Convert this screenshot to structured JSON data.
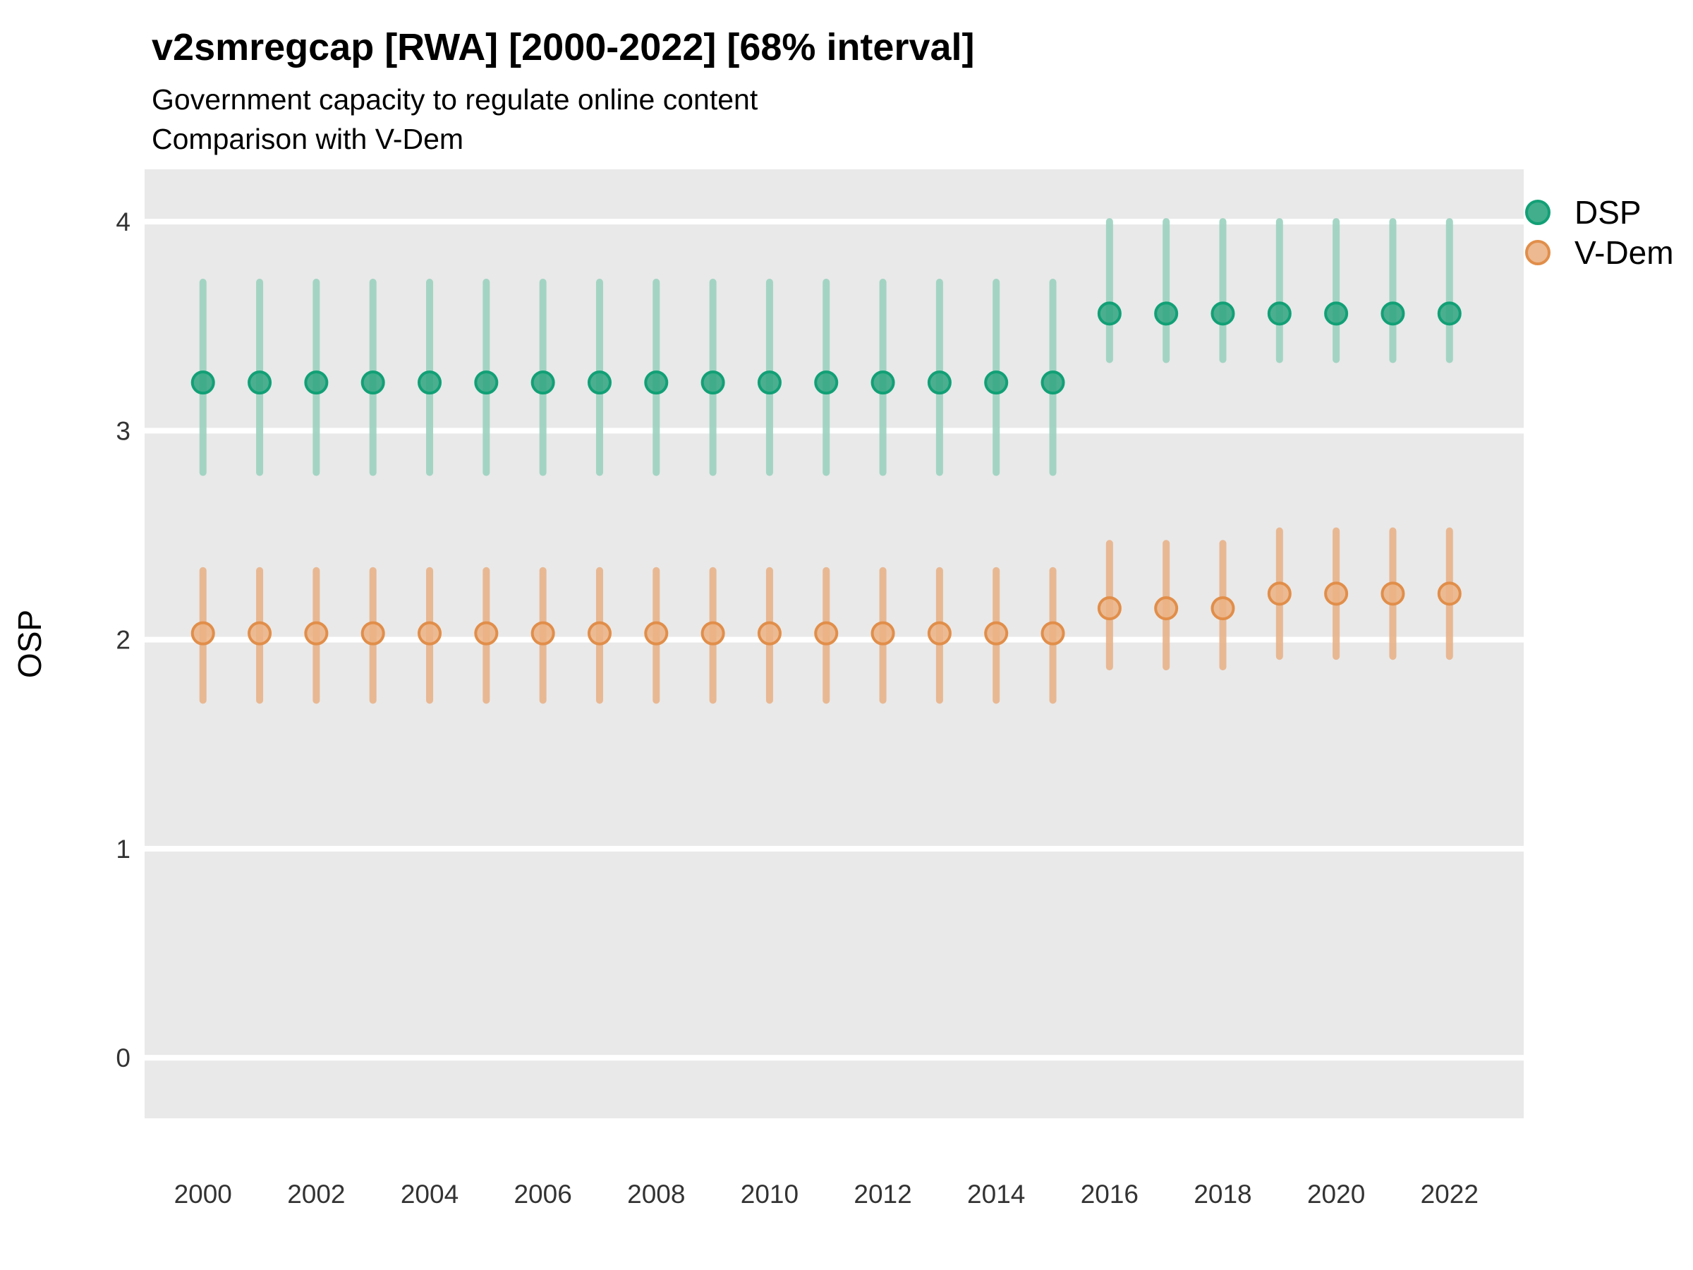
{
  "header": {
    "title": "v2smregcap [RWA] [2000-2022] [68% interval]",
    "subtitle1": "Government capacity to regulate online content",
    "subtitle2": "Comparison with V-Dem"
  },
  "axes": {
    "ylabel": "OSP",
    "y_ticks": [
      0,
      1,
      2,
      3,
      4
    ],
    "x_ticks": [
      2000,
      2002,
      2004,
      2006,
      2008,
      2010,
      2012,
      2014,
      2016,
      2018,
      2020,
      2022
    ]
  },
  "legend": {
    "items": [
      {
        "label": "DSP"
      },
      {
        "label": "V-Dem"
      }
    ]
  },
  "colors": {
    "panel_bg": "#e9e9e9",
    "gridline": "#ffffff",
    "tick_text": "#333333",
    "dsp_bar": "#9bd2bf",
    "dsp_fill": "#2fa57f",
    "dsp_stroke": "#12a076",
    "vdem_bar": "#e8b28a",
    "vdem_fill": "#ebb184",
    "vdem_stroke": "#e18e4a"
  },
  "chart_data": {
    "type": "pointrange",
    "title": "v2smregcap [RWA] [2000-2022] [68% interval]",
    "xlabel": "",
    "ylabel": "OSP",
    "x": [
      2000,
      2001,
      2002,
      2003,
      2004,
      2005,
      2006,
      2007,
      2008,
      2009,
      2010,
      2011,
      2012,
      2013,
      2014,
      2015,
      2016,
      2017,
      2018,
      2019,
      2020,
      2021,
      2022
    ],
    "xlim": [
      1998.97,
      2023.31
    ],
    "ylim": [
      -0.29,
      4.25
    ],
    "grid": "major-horizontal-only",
    "legend_position": "right-top",
    "series": [
      {
        "name": "DSP",
        "est": [
          3.23,
          3.23,
          3.23,
          3.23,
          3.23,
          3.23,
          3.23,
          3.23,
          3.23,
          3.23,
          3.23,
          3.23,
          3.23,
          3.23,
          3.23,
          3.23,
          3.56,
          3.56,
          3.56,
          3.56,
          3.56,
          3.56,
          3.56
        ],
        "lo": [
          2.8,
          2.8,
          2.8,
          2.8,
          2.8,
          2.8,
          2.8,
          2.8,
          2.8,
          2.8,
          2.8,
          2.8,
          2.8,
          2.8,
          2.8,
          2.8,
          3.34,
          3.34,
          3.34,
          3.34,
          3.34,
          3.34,
          3.34
        ],
        "hi": [
          3.71,
          3.71,
          3.71,
          3.71,
          3.71,
          3.71,
          3.71,
          3.71,
          3.71,
          3.71,
          3.71,
          3.71,
          3.71,
          3.71,
          3.71,
          3.71,
          4.0,
          4.0,
          4.0,
          4.0,
          4.0,
          4.0,
          4.0
        ]
      },
      {
        "name": "V-Dem",
        "est": [
          2.03,
          2.03,
          2.03,
          2.03,
          2.03,
          2.03,
          2.03,
          2.03,
          2.03,
          2.03,
          2.03,
          2.03,
          2.03,
          2.03,
          2.03,
          2.03,
          2.15,
          2.15,
          2.15,
          2.22,
          2.22,
          2.22,
          2.22
        ],
        "lo": [
          1.71,
          1.71,
          1.71,
          1.71,
          1.71,
          1.71,
          1.71,
          1.71,
          1.71,
          1.71,
          1.71,
          1.71,
          1.71,
          1.71,
          1.71,
          1.71,
          1.87,
          1.87,
          1.87,
          1.92,
          1.92,
          1.92,
          1.92
        ],
        "hi": [
          2.33,
          2.33,
          2.33,
          2.33,
          2.33,
          2.33,
          2.33,
          2.33,
          2.33,
          2.33,
          2.33,
          2.33,
          2.33,
          2.33,
          2.33,
          2.33,
          2.46,
          2.46,
          2.46,
          2.52,
          2.52,
          2.52,
          2.52
        ]
      }
    ]
  }
}
